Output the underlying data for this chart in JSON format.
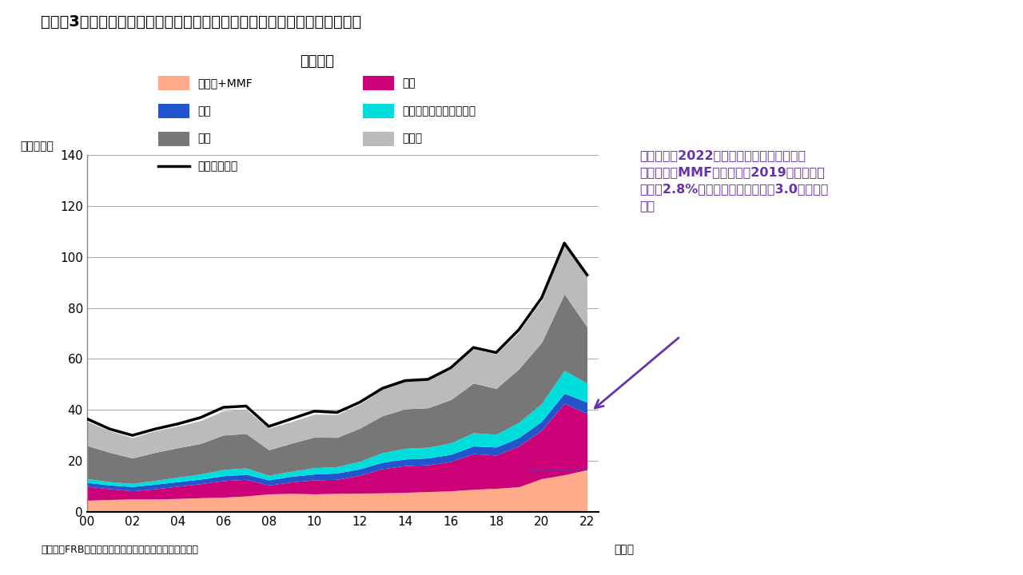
{
  "title_main": "（図表3）　日米ユーロ圏における家計金融資産残高の主要資産項目別推移",
  "title_sub": "－米国－",
  "ylabel": "（兆ドル）",
  "xlabel": "（年）",
  "source": "（出所）FRB（米連邦準備理事会）よりインベスコ作成",
  "ylim": [
    0,
    140
  ],
  "yticks": [
    0,
    20,
    40,
    60,
    80,
    100,
    120,
    140
  ],
  "xtick_labels": [
    "00",
    "02",
    "04",
    "06",
    "08",
    "10",
    "12",
    "14",
    "16",
    "18",
    "20",
    "22"
  ],
  "annotation_text": "米国では、2022年末の家計総資産に対する\n「現預金＋MMF」の比率は2019年平均と比\n較して2.8%ポイント上昇。これは3.0兆ドルに\n相当",
  "colors": {
    "cash_mmf": "#FFAA88",
    "stocks": "#CC0077",
    "bonds": "#2255CC",
    "mutual_funds": "#00DDDD",
    "pension": "#777777",
    "other": "#BBBBBB",
    "total_line": "#000000",
    "dashed_line": "#6633AA",
    "annotation_text": "#6633AA",
    "arrow": "#6633AA",
    "background": "#FFFFFF",
    "grid": "#AAAAAA"
  },
  "years": [
    2000,
    2001,
    2002,
    2003,
    2004,
    2005,
    2006,
    2007,
    2008,
    2009,
    2010,
    2011,
    2012,
    2013,
    2014,
    2015,
    2016,
    2017,
    2018,
    2019,
    2020,
    2021,
    2022
  ],
  "cash_mmf": [
    4.5,
    4.8,
    5.0,
    5.0,
    5.2,
    5.5,
    5.7,
    6.2,
    7.0,
    7.2,
    7.0,
    7.2,
    7.3,
    7.4,
    7.6,
    7.9,
    8.2,
    8.8,
    9.2,
    9.8,
    13.0,
    14.5,
    16.5
  ],
  "stocks": [
    5.5,
    4.2,
    3.2,
    4.0,
    4.8,
    5.5,
    6.5,
    6.5,
    3.5,
    4.5,
    5.5,
    5.5,
    7.0,
    9.5,
    10.5,
    10.5,
    11.5,
    14.0,
    13.0,
    16.0,
    19.0,
    28.0,
    22.0
  ],
  "bonds": [
    1.5,
    1.5,
    1.7,
    1.8,
    1.8,
    1.8,
    1.9,
    2.0,
    2.0,
    2.2,
    2.3,
    2.5,
    2.5,
    2.5,
    2.6,
    2.7,
    2.8,
    3.0,
    3.2,
    3.3,
    3.5,
    4.0,
    4.5
  ],
  "mutual_funds": [
    1.5,
    1.3,
    1.2,
    1.5,
    1.8,
    2.0,
    2.5,
    2.5,
    1.8,
    2.0,
    2.5,
    2.5,
    3.0,
    3.8,
    4.2,
    4.2,
    4.5,
    5.2,
    5.0,
    6.0,
    7.0,
    9.0,
    7.5
  ],
  "pension": [
    13.0,
    11.5,
    10.0,
    11.0,
    11.5,
    12.0,
    13.5,
    13.5,
    10.0,
    11.0,
    12.0,
    11.5,
    13.0,
    14.5,
    15.5,
    15.5,
    17.0,
    19.5,
    18.0,
    21.0,
    24.0,
    30.0,
    22.0
  ],
  "other": [
    9.5,
    8.5,
    8.0,
    8.5,
    8.5,
    9.0,
    9.5,
    9.5,
    8.5,
    8.5,
    9.0,
    9.0,
    9.5,
    10.5,
    11.0,
    11.0,
    12.0,
    13.5,
    13.5,
    14.5,
    16.5,
    19.5,
    20.0
  ],
  "total": [
    36.5,
    32.5,
    30.0,
    32.5,
    34.5,
    37.0,
    41.0,
    41.5,
    33.5,
    36.5,
    39.5,
    39.0,
    43.0,
    48.5,
    51.5,
    52.0,
    56.5,
    64.5,
    62.5,
    71.5,
    84.0,
    105.5,
    93.0
  ]
}
